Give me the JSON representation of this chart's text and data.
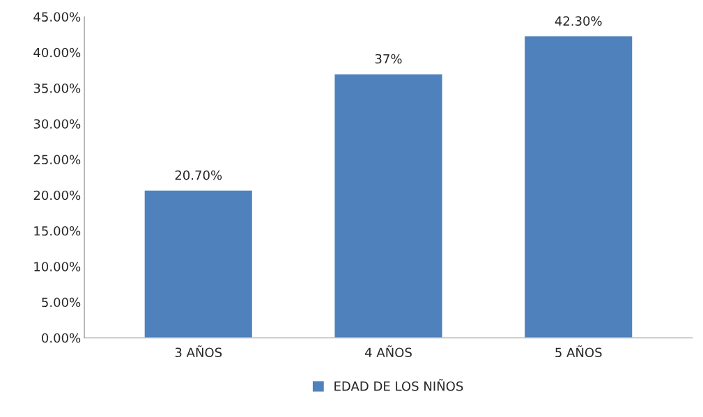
{
  "chart_data": {
    "type": "bar",
    "categories": [
      "3 AÑOS",
      "4 AÑOS",
      "5 AÑOS"
    ],
    "series": [
      {
        "name": "EDAD DE LOS NIÑOS",
        "color": "#4f81bd",
        "values": [
          20.7,
          37,
          42.3
        ],
        "value_labels": [
          "20.70%",
          "37%",
          "42.30%"
        ]
      }
    ],
    "ylim": [
      0,
      45
    ],
    "yticks": [
      {
        "value": 0,
        "label": "0.00%"
      },
      {
        "value": 5,
        "label": "5.00%"
      },
      {
        "value": 10,
        "label": "10.00%"
      },
      {
        "value": 15,
        "label": "15.00%"
      },
      {
        "value": 20,
        "label": "20.00%"
      },
      {
        "value": 25,
        "label": "25.00%"
      },
      {
        "value": 30,
        "label": "30.00%"
      },
      {
        "value": 35,
        "label": "35.00%"
      },
      {
        "value": 40,
        "label": "40.00%"
      },
      {
        "value": 45,
        "label": "45.00%"
      }
    ],
    "grid": false,
    "legend": "bottom"
  }
}
